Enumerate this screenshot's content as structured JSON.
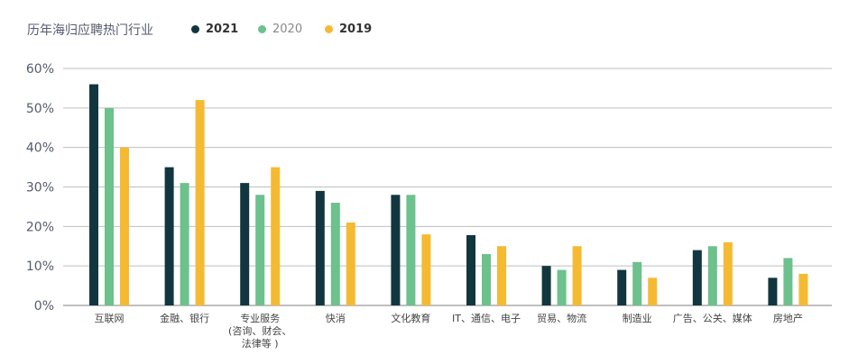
{
  "chart_data": {
    "type": "bar",
    "title": "历年海归应聘热门行业",
    "categories": [
      [
        "互联网"
      ],
      [
        "金融、银行"
      ],
      [
        "专业服务",
        "(咨询、财会、",
        "法律等 )"
      ],
      [
        "快消"
      ],
      [
        "文化教育"
      ],
      [
        "IT、通信、电子"
      ],
      [
        "贸易、物流"
      ],
      [
        "制造业"
      ],
      [
        "广告、公关、媒体"
      ],
      [
        "房地产"
      ]
    ],
    "series": [
      {
        "name": "2021",
        "color": "#12363f",
        "values": [
          56,
          35,
          31,
          29,
          28,
          17.8,
          10,
          9,
          14,
          7
        ]
      },
      {
        "name": "2020",
        "color": "#6cc18c",
        "values": [
          50,
          31,
          28,
          26,
          28,
          13,
          9,
          11,
          15,
          12
        ]
      },
      {
        "name": "2019",
        "color": "#f5ba32",
        "values": [
          40,
          52,
          35,
          21,
          18,
          15,
          15,
          7,
          16,
          8
        ]
      }
    ],
    "y_ticks": [
      "0%",
      "10%",
      "20%",
      "30%",
      "40%",
      "50%",
      "60%"
    ],
    "ylim": [
      0,
      60
    ],
    "grid": true,
    "legend_position": "top"
  }
}
